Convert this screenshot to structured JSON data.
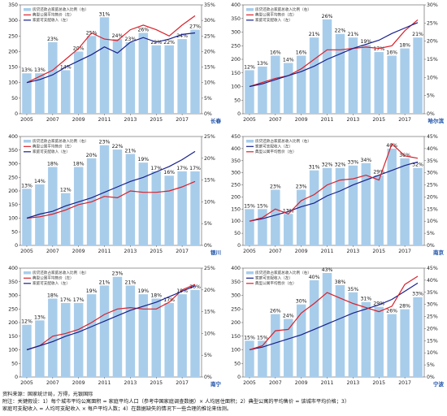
{
  "chart_data": [
    {
      "type": "bar",
      "city": "长春",
      "categories": [
        "2005",
        "2006",
        "2007",
        "2008",
        "2009",
        "2010",
        "2011",
        "2012",
        "2013",
        "2014",
        "2015",
        "2016",
        "2017",
        "2018"
      ],
      "x_tick_labels": [
        "2005",
        "2007",
        "2009",
        "2011",
        "2013",
        "2015",
        "2017"
      ],
      "legend": [
        "房贷还款占家庭总收入比例（右）",
        "典型公寓平均售价（左）",
        "家庭可支配收入（左）"
      ],
      "ylim_left": [
        0,
        350
      ],
      "yticks_left": [
        0,
        50,
        100,
        150,
        200,
        250,
        300,
        350
      ],
      "ylim_right": [
        0,
        35
      ],
      "yticks_right": [
        "0%",
        "5%",
        "10%",
        "15%",
        "20%",
        "25%",
        "30%",
        "35%"
      ],
      "bars": {
        "name": "房贷还款占家庭总收入比例（右）",
        "values": [
          13,
          13,
          23,
          14,
          20,
          25,
          31,
          24,
          23,
          26,
          22,
          22,
          24,
          27
        ],
        "labels": [
          "13%",
          "13%",
          "23%",
          "14%",
          "20%",
          "25%",
          "31%",
          "24%",
          "23%",
          "26%",
          "22%",
          "22%",
          "24%",
          "27%"
        ]
      },
      "series": [
        {
          "name": "典型公寓平均售价（左）",
          "color": "#d9202a",
          "values": [
            100,
            120,
            140,
            175,
            210,
            260,
            240,
            235,
            270,
            285,
            270,
            250,
            285,
            315
          ]
        },
        {
          "name": "家庭可支配收入（左）",
          "color": "#17208c",
          "values": [
            100,
            110,
            125,
            150,
            170,
            190,
            215,
            195,
            230,
            245,
            230,
            240,
            255,
            260
          ]
        }
      ]
    },
    {
      "type": "bar",
      "city": "哈尔滨",
      "categories": [
        "2005",
        "2006",
        "2007",
        "2008",
        "2009",
        "2010",
        "2011",
        "2012",
        "2013",
        "2014",
        "2015",
        "2016",
        "2017",
        "2018"
      ],
      "x_tick_labels": [
        "2005",
        "2007",
        "2009",
        "2011",
        "2013",
        "2015",
        "2017"
      ],
      "legend": [
        "房贷还款占家庭总收入比例（右）",
        "典型公寓平均售价（左）",
        "家庭可支配收入（左）"
      ],
      "ylim_left": [
        0,
        400
      ],
      "yticks_left": [
        0,
        50,
        100,
        150,
        200,
        250,
        300,
        350,
        400
      ],
      "ylim_right": [
        0,
        30
      ],
      "yticks_right": [
        "0%",
        "5%",
        "10%",
        "15%",
        "20%",
        "25%",
        "30%"
      ],
      "bars": {
        "name": "房贷还款占家庭总收入比例（右）",
        "values": [
          12,
          13,
          16,
          14,
          16,
          21,
          26,
          22,
          21,
          19,
          17,
          16,
          18,
          21
        ],
        "labels": [
          "12%",
          "13%",
          "16%",
          "14%",
          "16%",
          "21%",
          "26%",
          "22%",
          "21%",
          "19%",
          "17%",
          "16%",
          "18%",
          "21%"
        ]
      },
      "series": [
        {
          "name": "典型公寓平均售价（左）",
          "color": "#d9202a",
          "values": [
            100,
            115,
            130,
            140,
            165,
            200,
            235,
            235,
            240,
            245,
            240,
            250,
            305,
            345
          ]
        },
        {
          "name": "家庭可支配收入（左）",
          "color": "#17208c",
          "values": [
            100,
            110,
            125,
            140,
            155,
            175,
            200,
            220,
            240,
            255,
            270,
            295,
            315,
            335
          ]
        }
      ]
    },
    {
      "type": "bar",
      "city": "银川",
      "categories": [
        "2005",
        "2006",
        "2007",
        "2008",
        "2009",
        "2010",
        "2011",
        "2012",
        "2013",
        "2014",
        "2015",
        "2016",
        "2017",
        "2018"
      ],
      "x_tick_labels": [
        "2005",
        "2007",
        "2009",
        "2011",
        "2013",
        "2015",
        "2017"
      ],
      "legend": [
        "房贷还款占家庭总收入比例（右）",
        "典型公寓平均售价（左）",
        "家庭可支配收入（左）"
      ],
      "ylim_left": [
        0,
        400
      ],
      "yticks_left": [
        0,
        50,
        100,
        150,
        200,
        250,
        300,
        350,
        400
      ],
      "ylim_right": [
        0,
        25
      ],
      "yticks_right": [
        "0%",
        "5%",
        "10%",
        "15%",
        "20%",
        "25%"
      ],
      "bars": {
        "name": "房贷还款占家庭总收入比例（右）",
        "values": [
          13,
          14,
          18,
          12,
          18,
          20,
          23,
          22,
          21,
          19,
          17,
          16,
          17,
          17
        ],
        "labels": [
          "13%",
          "14%",
          "18%",
          "12%",
          "18%",
          "20%",
          "23%",
          "22%",
          "21%",
          "19%",
          "17%",
          "16%",
          "17%",
          "17%"
        ]
      },
      "series": [
        {
          "name": "典型公寓平均售价（左）",
          "color": "#d9202a",
          "values": [
            100,
            105,
            115,
            130,
            150,
            160,
            180,
            175,
            200,
            195,
            195,
            200,
            215,
            235
          ]
        },
        {
          "name": "家庭可支配收入（左）",
          "color": "#17208c",
          "values": [
            100,
            115,
            125,
            145,
            160,
            175,
            195,
            215,
            235,
            250,
            270,
            290,
            315,
            345
          ]
        }
      ]
    },
    {
      "type": "bar",
      "city": "南京",
      "categories": [
        "2005",
        "2006",
        "2007",
        "2008",
        "2009",
        "2010",
        "2011",
        "2012",
        "2013",
        "2014",
        "2015",
        "2016",
        "2017",
        "2018"
      ],
      "x_tick_labels": [
        "2005",
        "2007",
        "2009",
        "2011",
        "2013",
        "2015",
        "2017"
      ],
      "legend": [
        "房贷还款占家庭总收入比例（右）",
        "家庭可支配收入（左）",
        "典型公寓平均售价（左）"
      ],
      "ylim_left": [
        0,
        450
      ],
      "yticks_left": [
        0,
        50,
        100,
        150,
        200,
        250,
        300,
        350,
        400,
        450
      ],
      "ylim_right": [
        0,
        45
      ],
      "yticks_right": [
        "0%",
        "5%",
        "10%",
        "15%",
        "20%",
        "25%",
        "30%",
        "35%",
        "40%",
        "45%"
      ],
      "bars": {
        "name": "房贷还款占家庭总收入比例（右）",
        "values": [
          15,
          15,
          23,
          13,
          23,
          31,
          32,
          32,
          33,
          34,
          29,
          40,
          36,
          32
        ],
        "labels": [
          "15%",
          "15%",
          "23%",
          "13%",
          "23%",
          "31%",
          "32%",
          "32%",
          "33%",
          "34%",
          "29%",
          "40%",
          "36%",
          "32%"
        ]
      },
      "series": [
        {
          "name": "家庭可支配收入（左）",
          "color": "#17208c",
          "values": [
            100,
            110,
            125,
            140,
            160,
            175,
            205,
            225,
            250,
            270,
            290,
            310,
            330,
            345
          ]
        },
        {
          "name": "典型公寓平均售价（左）",
          "color": "#d9202a",
          "values": [
            100,
            115,
            150,
            130,
            185,
            210,
            250,
            270,
            275,
            290,
            270,
            420,
            370,
            360
          ]
        }
      ]
    },
    {
      "type": "bar",
      "city": "南宁",
      "categories": [
        "2005",
        "2006",
        "2007",
        "2008",
        "2009",
        "2010",
        "2011",
        "2012",
        "2013",
        "2014",
        "2015",
        "2016",
        "2017",
        "2018"
      ],
      "x_tick_labels": [
        "2005",
        "2007",
        "2009",
        "2011",
        "2013",
        "2015",
        "2017"
      ],
      "legend": [
        "房贷还款占家庭总收入比例（右）",
        "典型公寓平均售价（左）",
        "家庭可支配收入（左）"
      ],
      "ylim_left": [
        0,
        400
      ],
      "yticks_left": [
        0,
        50,
        100,
        150,
        200,
        250,
        300,
        350,
        400
      ],
      "ylim_right": [
        0,
        25
      ],
      "yticks_right": [
        "0%",
        "5%",
        "10%",
        "15%",
        "20%",
        "25%"
      ],
      "bars": {
        "name": "房贷还款占家庭总收入比例（右）",
        "values": [
          12,
          13,
          18,
          17,
          17,
          19,
          21,
          23,
          21,
          19,
          18,
          17,
          19,
          20
        ],
        "labels": [
          "12%",
          "13%",
          "18%",
          "17%",
          "17%",
          "19%",
          "21%",
          "23%",
          "21%",
          "19%",
          "18%",
          "17%",
          "19%",
          "20%"
        ]
      },
      "series": [
        {
          "name": "典型公寓平均售价（左）",
          "color": "#d9202a",
          "values": [
            100,
            115,
            150,
            160,
            175,
            200,
            230,
            250,
            255,
            250,
            250,
            275,
            320,
            340
          ]
        },
        {
          "name": "家庭可支配收入（左）",
          "color": "#17208c",
          "values": [
            100,
            115,
            130,
            150,
            165,
            185,
            205,
            225,
            245,
            260,
            275,
            295,
            315,
            335
          ]
        }
      ]
    },
    {
      "type": "bar",
      "city": "宁波",
      "categories": [
        "2005",
        "2006",
        "2007",
        "2008",
        "2009",
        "2010",
        "2011",
        "2012",
        "2013",
        "2014",
        "2015",
        "2016",
        "2017",
        "2018"
      ],
      "x_tick_labels": [
        "2005",
        "2007",
        "2009",
        "2011",
        "2013",
        "2015",
        "2017"
      ],
      "legend": [
        "房贷还款占家庭总收入比例（右）",
        "家庭可支配收入（左）",
        "典型公寓平均售价（左）"
      ],
      "ylim_left": [
        0,
        400
      ],
      "yticks_left": [
        0,
        50,
        100,
        150,
        200,
        250,
        300,
        350,
        400
      ],
      "ylim_right": [
        0,
        45
      ],
      "yticks_right": [
        "0%",
        "5%",
        "10%",
        "15%",
        "20%",
        "25%",
        "30%",
        "35%",
        "40%",
        "45%"
      ],
      "bars": {
        "name": "房贷还款占家庭总收入比例（右）",
        "values": [
          15,
          15,
          26,
          24,
          30,
          40,
          43,
          38,
          35,
          31,
          29,
          26,
          28,
          33
        ],
        "labels": [
          "15%",
          "15%",
          "26%",
          "24%",
          "30%",
          "40%",
          "43%",
          "38%",
          "35%",
          "31%",
          "29%",
          "26%",
          "28%",
          "33%"
        ]
      },
      "series": [
        {
          "name": "家庭可支配收入（左）",
          "color": "#17208c",
          "values": [
            100,
            110,
            125,
            140,
            155,
            175,
            195,
            215,
            235,
            250,
            265,
            285,
            315,
            345
          ]
        },
        {
          "name": "典型公寓平均售价（左）",
          "color": "#d9202a",
          "values": [
            100,
            115,
            170,
            175,
            235,
            270,
            310,
            290,
            270,
            255,
            240,
            260,
            340,
            370
          ]
        }
      ]
    }
  ],
  "footer": {
    "line1": "资料来源：国家统计局，万得，光银国际",
    "line2": "附注：关键假设：1）每个城市平均公寓面积 = 家庭平均人口（参考中国家庭调查数据）× 人均居住面积；2）典型公寓的平均售价 = 该城市平均价格；3）",
    "line3": "家庭可支配收入 = 人均可支配收入 × 每户平均人数；4）在数据缺失的情况下一些合理的推论来估测。"
  }
}
